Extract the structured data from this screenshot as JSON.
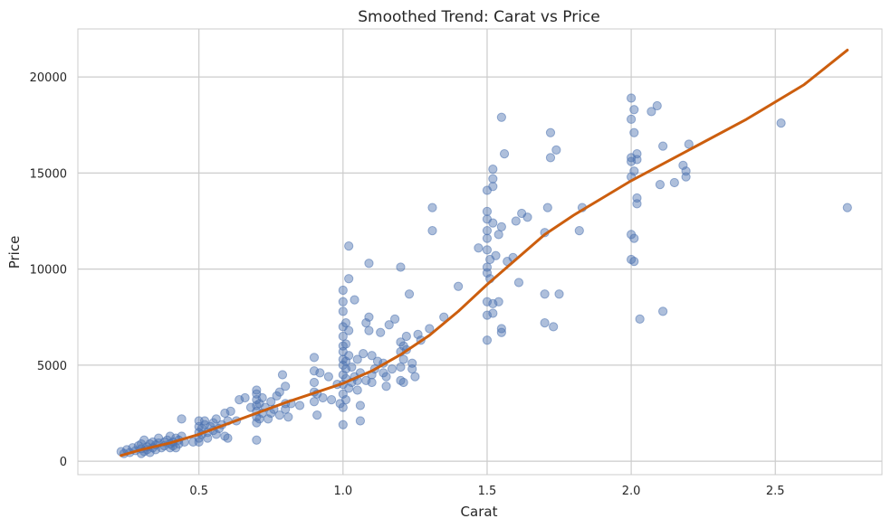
{
  "chart_data": {
    "type": "scatter",
    "title": "Smoothed Trend: Carat vs Price",
    "xlabel": "Carat",
    "ylabel": "Price",
    "xlim": [
      0.08,
      2.87
    ],
    "ylim": [
      -700,
      22500
    ],
    "x_ticks": [
      0.5,
      1.0,
      1.5,
      2.0,
      2.5
    ],
    "x_tick_labels": [
      "0.5",
      "1.0",
      "1.5",
      "2.0",
      "2.5"
    ],
    "y_ticks": [
      0,
      5000,
      10000,
      15000,
      20000
    ],
    "y_tick_labels": [
      "0",
      "5000",
      "10000",
      "15000",
      "20000"
    ],
    "grid": true,
    "colors": {
      "points": "#4c72b0",
      "trend": "#cc5e0e",
      "grid": "#cccccc",
      "frame": "#cccccc"
    },
    "series": [
      {
        "kind": "scatter",
        "points": [
          [
            0.23,
            500
          ],
          [
            0.24,
            400
          ],
          [
            0.25,
            600
          ],
          [
            0.26,
            450
          ],
          [
            0.27,
            700
          ],
          [
            0.28,
            550
          ],
          [
            0.29,
            800
          ],
          [
            0.3,
            400
          ],
          [
            0.3,
            650
          ],
          [
            0.3,
            900
          ],
          [
            0.31,
            500
          ],
          [
            0.31,
            1100
          ],
          [
            0.32,
            750
          ],
          [
            0.32,
            600
          ],
          [
            0.33,
            900
          ],
          [
            0.33,
            450
          ],
          [
            0.34,
            700
          ],
          [
            0.34,
            1000
          ],
          [
            0.35,
            850
          ],
          [
            0.35,
            600
          ],
          [
            0.36,
            950
          ],
          [
            0.36,
            1200
          ],
          [
            0.37,
            700
          ],
          [
            0.38,
            1000
          ],
          [
            0.38,
            800
          ],
          [
            0.39,
            1100
          ],
          [
            0.4,
            900
          ],
          [
            0.4,
            700
          ],
          [
            0.4,
            1300
          ],
          [
            0.41,
            1000
          ],
          [
            0.41,
            800
          ],
          [
            0.42,
            1200
          ],
          [
            0.42,
            700
          ],
          [
            0.43,
            1100
          ],
          [
            0.43,
            900
          ],
          [
            0.44,
            2200
          ],
          [
            0.44,
            1300
          ],
          [
            0.45,
            1000
          ],
          [
            0.48,
            1000
          ],
          [
            0.5,
            1200
          ],
          [
            0.5,
            1500
          ],
          [
            0.5,
            1800
          ],
          [
            0.5,
            2100
          ],
          [
            0.5,
            1000
          ],
          [
            0.51,
            1700
          ],
          [
            0.51,
            1400
          ],
          [
            0.52,
            1900
          ],
          [
            0.52,
            2100
          ],
          [
            0.53,
            1500
          ],
          [
            0.53,
            1200
          ],
          [
            0.54,
            1800
          ],
          [
            0.55,
            1600
          ],
          [
            0.55,
            2000
          ],
          [
            0.56,
            1400
          ],
          [
            0.56,
            2200
          ],
          [
            0.57,
            1700
          ],
          [
            0.58,
            1900
          ],
          [
            0.59,
            1300
          ],
          [
            0.59,
            2500
          ],
          [
            0.6,
            1200
          ],
          [
            0.6,
            2100
          ],
          [
            0.61,
            2600
          ],
          [
            0.63,
            2100
          ],
          [
            0.64,
            3200
          ],
          [
            0.66,
            3300
          ],
          [
            0.68,
            2800
          ],
          [
            0.7,
            1100
          ],
          [
            0.7,
            2000
          ],
          [
            0.7,
            2300
          ],
          [
            0.7,
            2600
          ],
          [
            0.7,
            2900
          ],
          [
            0.7,
            3200
          ],
          [
            0.7,
            3500
          ],
          [
            0.7,
            3700
          ],
          [
            0.71,
            2200
          ],
          [
            0.71,
            3000
          ],
          [
            0.72,
            2500
          ],
          [
            0.72,
            3300
          ],
          [
            0.73,
            2800
          ],
          [
            0.74,
            2200
          ],
          [
            0.75,
            3100
          ],
          [
            0.75,
            2500
          ],
          [
            0.76,
            2700
          ],
          [
            0.77,
            3400
          ],
          [
            0.78,
            3600
          ],
          [
            0.78,
            2400
          ],
          [
            0.79,
            4500
          ],
          [
            0.8,
            3000
          ],
          [
            0.8,
            3900
          ],
          [
            0.8,
            2700
          ],
          [
            0.81,
            2300
          ],
          [
            0.82,
            3000
          ],
          [
            0.85,
            2900
          ],
          [
            0.9,
            3100
          ],
          [
            0.9,
            3600
          ],
          [
            0.9,
            4100
          ],
          [
            0.9,
            4700
          ],
          [
            0.9,
            5400
          ],
          [
            0.91,
            3500
          ],
          [
            0.91,
            2400
          ],
          [
            0.92,
            4600
          ],
          [
            0.93,
            3300
          ],
          [
            0.95,
            4400
          ],
          [
            0.96,
            3200
          ],
          [
            0.98,
            4000
          ],
          [
            0.99,
            3000
          ],
          [
            1.0,
            1900
          ],
          [
            1.0,
            2800
          ],
          [
            1.0,
            3500
          ],
          [
            1.0,
            4000
          ],
          [
            1.0,
            4500
          ],
          [
            1.0,
            5000
          ],
          [
            1.0,
            5300
          ],
          [
            1.0,
            5700
          ],
          [
            1.0,
            6000
          ],
          [
            1.0,
            6500
          ],
          [
            1.0,
            7000
          ],
          [
            1.0,
            7800
          ],
          [
            1.0,
            8300
          ],
          [
            1.0,
            8900
          ],
          [
            1.01,
            3200
          ],
          [
            1.01,
            4300
          ],
          [
            1.01,
            4800
          ],
          [
            1.01,
            5200
          ],
          [
            1.01,
            6100
          ],
          [
            1.01,
            7200
          ],
          [
            1.02,
            3800
          ],
          [
            1.02,
            5500
          ],
          [
            1.02,
            6800
          ],
          [
            1.02,
            9500
          ],
          [
            1.02,
            11200
          ],
          [
            1.03,
            4100
          ],
          [
            1.03,
            4900
          ],
          [
            1.04,
            4400
          ],
          [
            1.04,
            8400
          ],
          [
            1.05,
            3700
          ],
          [
            1.05,
            5300
          ],
          [
            1.05,
            4200
          ],
          [
            1.06,
            2100
          ],
          [
            1.06,
            2900
          ],
          [
            1.06,
            4600
          ],
          [
            1.07,
            5600
          ],
          [
            1.08,
            4200
          ],
          [
            1.08,
            7200
          ],
          [
            1.09,
            6800
          ],
          [
            1.09,
            7500
          ],
          [
            1.09,
            10300
          ],
          [
            1.1,
            4500
          ],
          [
            1.1,
            5500
          ],
          [
            1.1,
            4100
          ],
          [
            1.11,
            4800
          ],
          [
            1.12,
            5200
          ],
          [
            1.13,
            6700
          ],
          [
            1.14,
            4600
          ],
          [
            1.14,
            5100
          ],
          [
            1.15,
            4400
          ],
          [
            1.15,
            3900
          ],
          [
            1.16,
            7100
          ],
          [
            1.17,
            4800
          ],
          [
            1.18,
            7400
          ],
          [
            1.2,
            4200
          ],
          [
            1.2,
            4900
          ],
          [
            1.2,
            5700
          ],
          [
            1.2,
            6200
          ],
          [
            1.2,
            10100
          ],
          [
            1.21,
            5300
          ],
          [
            1.21,
            6000
          ],
          [
            1.21,
            4100
          ],
          [
            1.22,
            6500
          ],
          [
            1.22,
            5800
          ],
          [
            1.23,
            8700
          ],
          [
            1.24,
            5100
          ],
          [
            1.24,
            4800
          ],
          [
            1.25,
            4400
          ],
          [
            1.26,
            6600
          ],
          [
            1.27,
            6300
          ],
          [
            1.3,
            6900
          ],
          [
            1.31,
            13200
          ],
          [
            1.31,
            12000
          ],
          [
            1.35,
            7500
          ],
          [
            1.4,
            9100
          ],
          [
            1.47,
            11100
          ],
          [
            1.5,
            6300
          ],
          [
            1.5,
            7600
          ],
          [
            1.5,
            8300
          ],
          [
            1.5,
            9800
          ],
          [
            1.5,
            10100
          ],
          [
            1.5,
            11000
          ],
          [
            1.5,
            11600
          ],
          [
            1.5,
            12000
          ],
          [
            1.5,
            12600
          ],
          [
            1.5,
            13000
          ],
          [
            1.5,
            14100
          ],
          [
            1.51,
            9500
          ],
          [
            1.51,
            10500
          ],
          [
            1.52,
            14300
          ],
          [
            1.52,
            12400
          ],
          [
            1.52,
            7700
          ],
          [
            1.52,
            8200
          ],
          [
            1.52,
            14700
          ],
          [
            1.52,
            15200
          ],
          [
            1.53,
            10700
          ],
          [
            1.54,
            11800
          ],
          [
            1.54,
            8300
          ],
          [
            1.55,
            17900
          ],
          [
            1.55,
            6900
          ],
          [
            1.55,
            6700
          ],
          [
            1.55,
            12200
          ],
          [
            1.56,
            16000
          ],
          [
            1.57,
            10400
          ],
          [
            1.59,
            10600
          ],
          [
            1.6,
            12500
          ],
          [
            1.61,
            9300
          ],
          [
            1.62,
            12900
          ],
          [
            1.64,
            12700
          ],
          [
            1.7,
            7200
          ],
          [
            1.7,
            8700
          ],
          [
            1.7,
            11900
          ],
          [
            1.71,
            13200
          ],
          [
            1.72,
            15800
          ],
          [
            1.72,
            17100
          ],
          [
            1.73,
            7000
          ],
          [
            1.74,
            16200
          ],
          [
            1.75,
            8700
          ],
          [
            1.82,
            12000
          ],
          [
            1.83,
            13200
          ],
          [
            2.0,
            10500
          ],
          [
            2.0,
            11800
          ],
          [
            2.0,
            14800
          ],
          [
            2.0,
            15600
          ],
          [
            2.0,
            15800
          ],
          [
            2.0,
            17800
          ],
          [
            2.0,
            18900
          ],
          [
            2.01,
            15100
          ],
          [
            2.01,
            18300
          ],
          [
            2.01,
            11600
          ],
          [
            2.01,
            10400
          ],
          [
            2.01,
            17100
          ],
          [
            2.02,
            15700
          ],
          [
            2.02,
            16000
          ],
          [
            2.02,
            13700
          ],
          [
            2.02,
            13400
          ],
          [
            2.03,
            7400
          ],
          [
            2.07,
            18200
          ],
          [
            2.09,
            18500
          ],
          [
            2.1,
            14400
          ],
          [
            2.11,
            16400
          ],
          [
            2.11,
            7800
          ],
          [
            2.15,
            14500
          ],
          [
            2.18,
            15400
          ],
          [
            2.19,
            14800
          ],
          [
            2.19,
            15100
          ],
          [
            2.2,
            16500
          ],
          [
            2.52,
            17600
          ],
          [
            2.75,
            13200
          ]
        ]
      },
      {
        "kind": "line",
        "points": [
          [
            0.23,
            300
          ],
          [
            0.3,
            600
          ],
          [
            0.4,
            950
          ],
          [
            0.5,
            1400
          ],
          [
            0.6,
            1950
          ],
          [
            0.7,
            2500
          ],
          [
            0.8,
            3050
          ],
          [
            0.9,
            3550
          ],
          [
            1.0,
            4050
          ],
          [
            1.1,
            4700
          ],
          [
            1.2,
            5550
          ],
          [
            1.3,
            6550
          ],
          [
            1.4,
            7800
          ],
          [
            1.5,
            9200
          ],
          [
            1.6,
            10500
          ],
          [
            1.7,
            11800
          ],
          [
            1.8,
            12800
          ],
          [
            1.9,
            13700
          ],
          [
            2.0,
            14600
          ],
          [
            2.2,
            16200
          ],
          [
            2.4,
            17800
          ],
          [
            2.6,
            19600
          ],
          [
            2.75,
            21400
          ]
        ]
      }
    ]
  }
}
